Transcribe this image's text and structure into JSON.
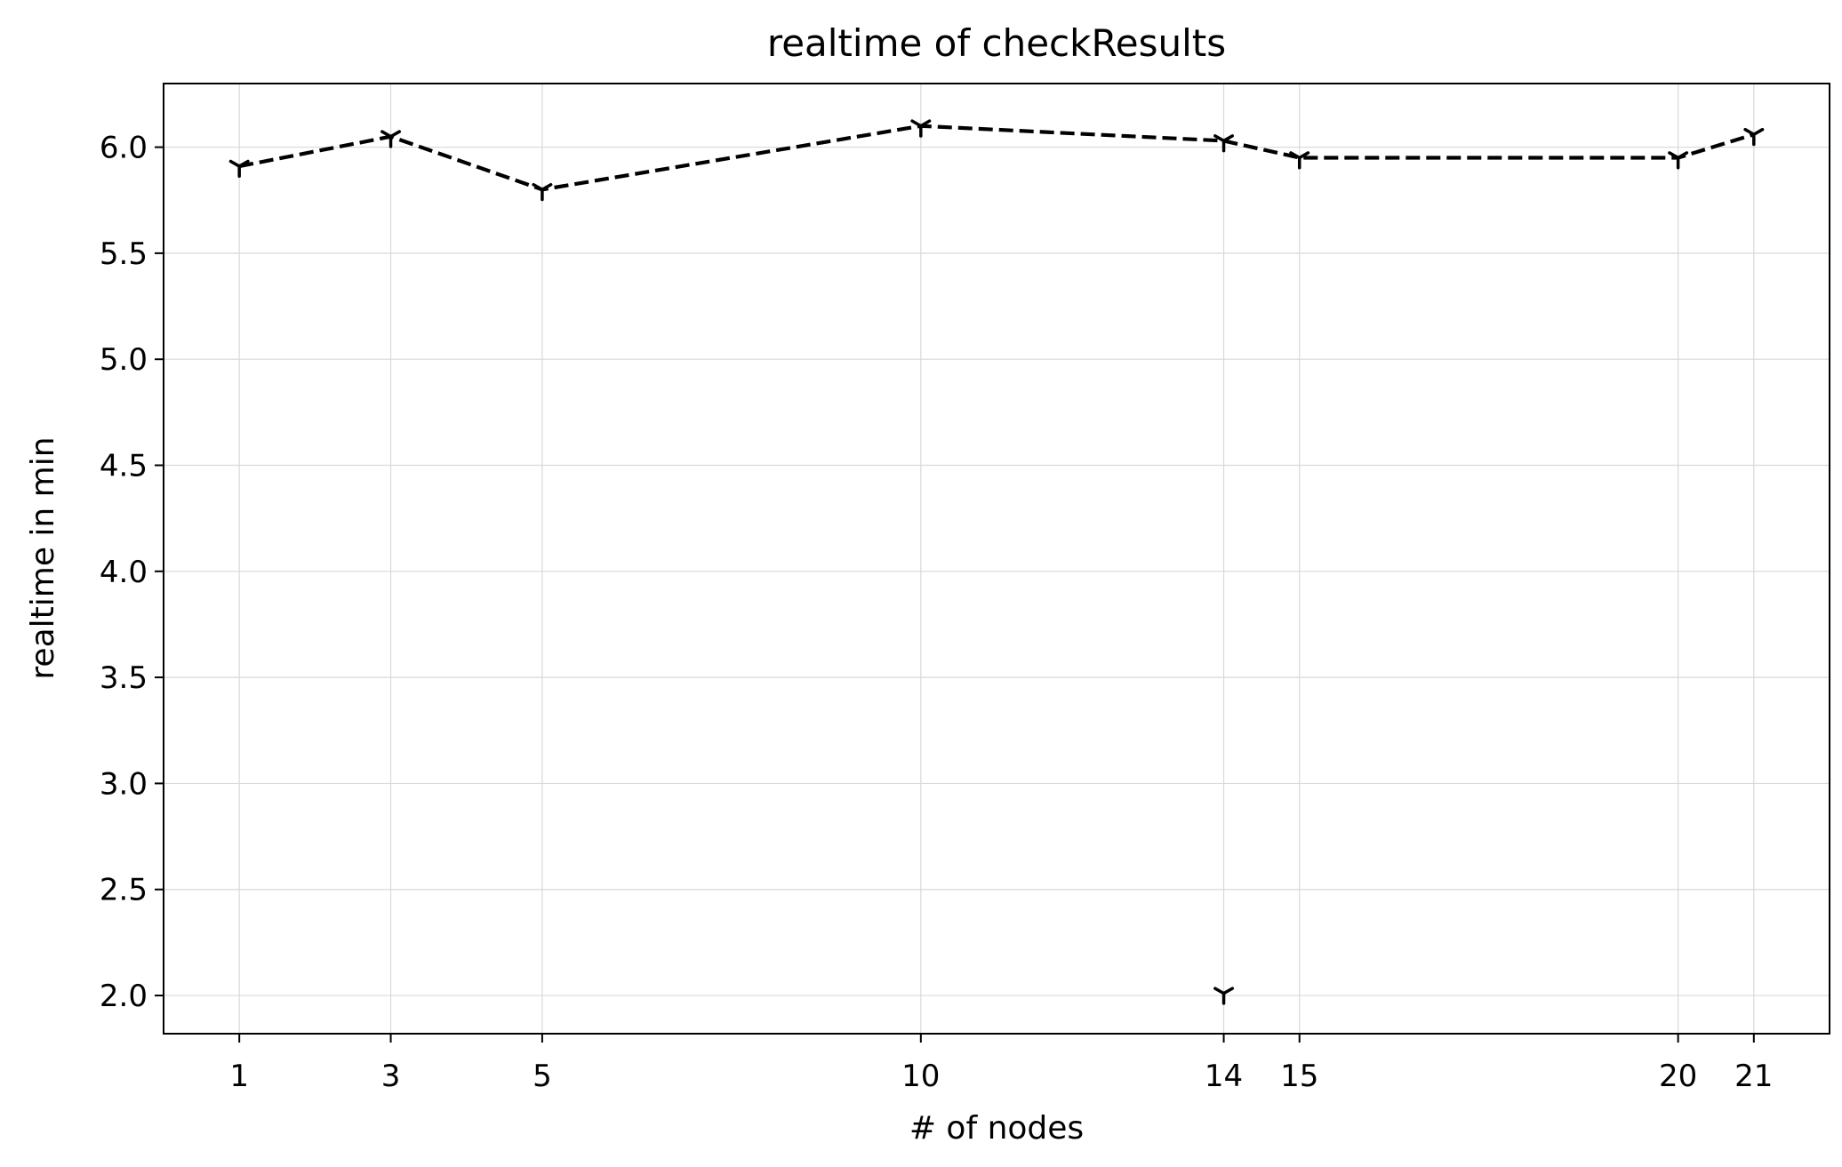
{
  "chart_data": {
    "type": "line",
    "title": "realtime of checkResults",
    "xlabel": "# of nodes",
    "ylabel": "realtime in min",
    "x_ticks": [
      1,
      3,
      5,
      10,
      14,
      15,
      20,
      21
    ],
    "x_tick_labels": [
      "1",
      "3",
      "5",
      "10",
      "14",
      "15",
      "20",
      "21"
    ],
    "y_ticks": [
      2.0,
      2.5,
      3.0,
      3.5,
      4.0,
      4.5,
      5.0,
      5.5,
      6.0
    ],
    "y_tick_labels": [
      "2.0",
      "2.5",
      "3.0",
      "3.5",
      "4.0",
      "4.5",
      "5.0",
      "5.5",
      "6.0"
    ],
    "xlim": [
      0,
      22
    ],
    "ylim": [
      1.82,
      6.3
    ],
    "grid": true,
    "series": [
      {
        "color": "#000000",
        "line_style": "dashed",
        "marker": "tri-down",
        "points": [
          {
            "x": 1,
            "y": 5.91
          },
          {
            "x": 3,
            "y": 6.05
          },
          {
            "x": 5,
            "y": 5.8
          },
          {
            "x": 10,
            "y": 6.1
          },
          {
            "x": 14,
            "y": 6.03
          },
          {
            "x": 15,
            "y": 5.95
          },
          {
            "x": 20,
            "y": 5.95
          },
          {
            "x": 21,
            "y": 6.06
          }
        ]
      }
    ],
    "outlier_points": [
      {
        "x": 14,
        "y": 2.01
      }
    ]
  }
}
